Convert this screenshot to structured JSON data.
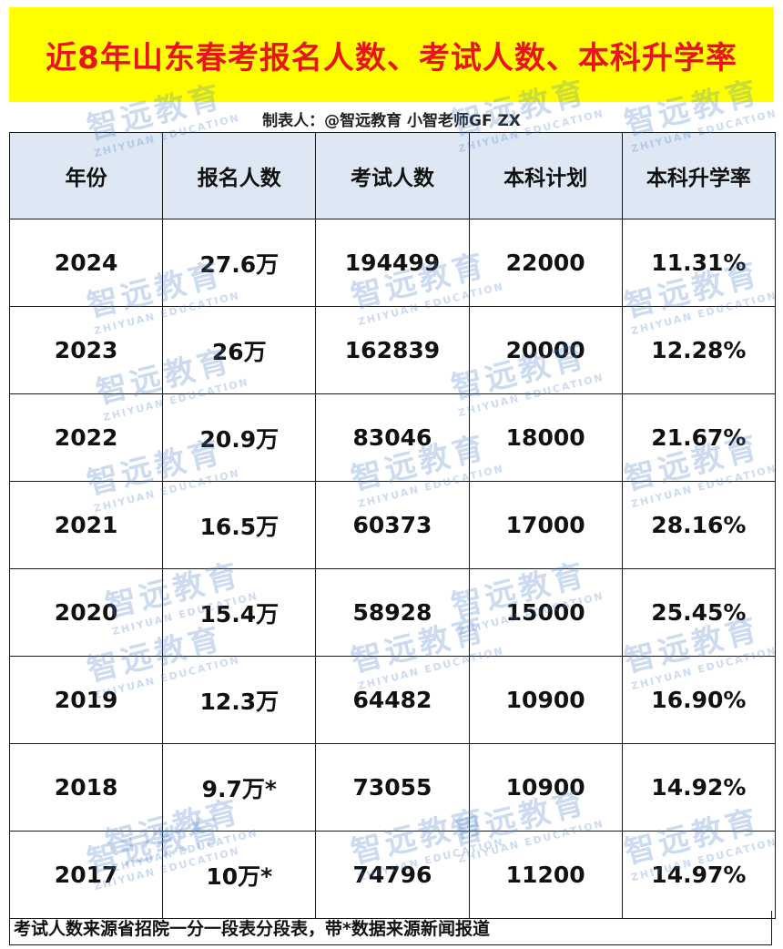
{
  "title": "近8年山东春考报名人数、考试人数、本科升学率",
  "maker": "制表人：@智远教育 小智老师GF ZX",
  "headers": [
    "年份",
    "报名人数",
    "考试人数",
    "本科计划",
    "本科升学率"
  ],
  "rows": [
    [
      "2024",
      "27.6万",
      "194499",
      "22000",
      "11.31%"
    ],
    [
      "2023",
      "26万",
      "162839",
      "20000",
      "12.28%"
    ],
    [
      "2022",
      "20.9万",
      "83046",
      "18000",
      "21.67%"
    ],
    [
      "2021",
      "16.5万",
      "60373",
      "17000",
      "28.16%"
    ],
    [
      "2020",
      "15.4万",
      "58928",
      "15000",
      "25.45%"
    ],
    [
      "2019",
      "12.3万",
      "64482",
      "10900",
      "16.90%"
    ],
    [
      "2018",
      "9.7万*",
      "73055",
      "10900",
      "14.92%"
    ],
    [
      "2017",
      "10万*",
      "74796",
      "11200",
      "14.97%"
    ]
  ],
  "footer": "考试人数来源省招院一分一段表分段表，带*数据来源新闻报道",
  "watermark": {
    "cn": "智远教育",
    "en": "ZHIYUAN EDUCATION"
  },
  "colors": {
    "title_bg": "#ffff00",
    "title_text": "#e8131b",
    "header_bg": "#dde8f4",
    "watermark": "#4a7fc9"
  }
}
